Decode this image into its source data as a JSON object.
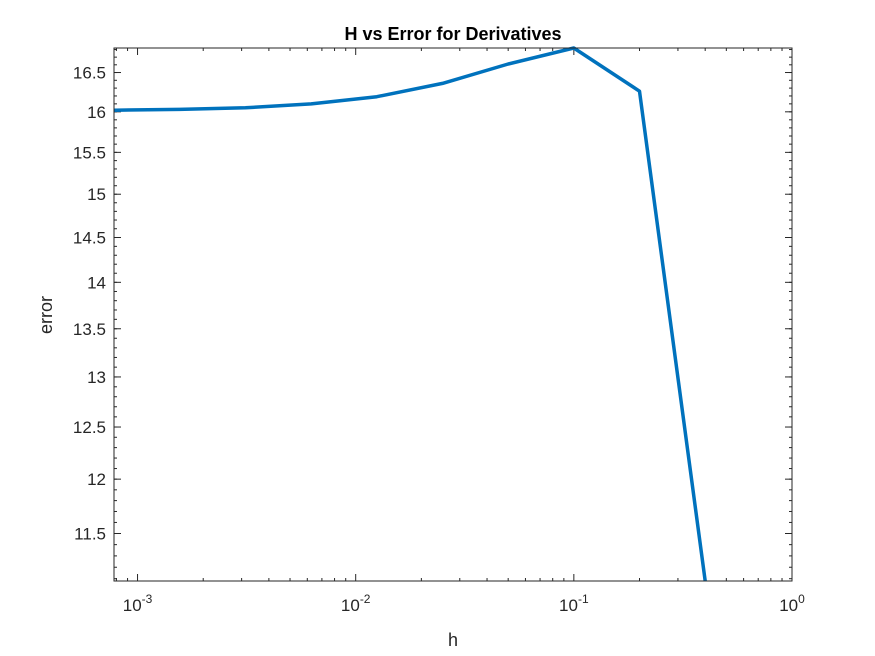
{
  "chart_data": {
    "type": "line",
    "title": "H vs Error for Derivatives",
    "xlabel": "h",
    "ylabel": "error",
    "xscale": "log",
    "yscale": "log",
    "xlim": [
      0.00078,
      1
    ],
    "ylim": [
      11.08,
      16.82
    ],
    "xticks": [
      {
        "value": 0.001,
        "base": "10",
        "exp": "-3"
      },
      {
        "value": 0.01,
        "base": "10",
        "exp": "-2"
      },
      {
        "value": 0.1,
        "base": "10",
        "exp": "-1"
      },
      {
        "value": 1,
        "base": "10",
        "exp": "0"
      }
    ],
    "yticks": [
      {
        "value": 11.5,
        "label": "11.5"
      },
      {
        "value": 12,
        "label": "12"
      },
      {
        "value": 12.5,
        "label": "12.5"
      },
      {
        "value": 13,
        "label": "13"
      },
      {
        "value": 13.5,
        "label": "13.5"
      },
      {
        "value": 14,
        "label": "14"
      },
      {
        "value": 14.5,
        "label": "14.5"
      },
      {
        "value": 15,
        "label": "15"
      },
      {
        "value": 15.5,
        "label": "15.5"
      },
      {
        "value": 16,
        "label": "16"
      },
      {
        "value": 16.5,
        "label": "16.5"
      }
    ],
    "grid": false,
    "series": [
      {
        "color": "#0072BD",
        "x": [
          0.000781,
          0.00156,
          0.003125,
          0.00625,
          0.0125,
          0.025,
          0.05,
          0.1,
          0.2,
          0.4
        ],
        "y": [
          16.02,
          16.03,
          16.05,
          16.1,
          16.19,
          16.36,
          16.61,
          16.82,
          16.26,
          11.08
        ]
      }
    ]
  }
}
